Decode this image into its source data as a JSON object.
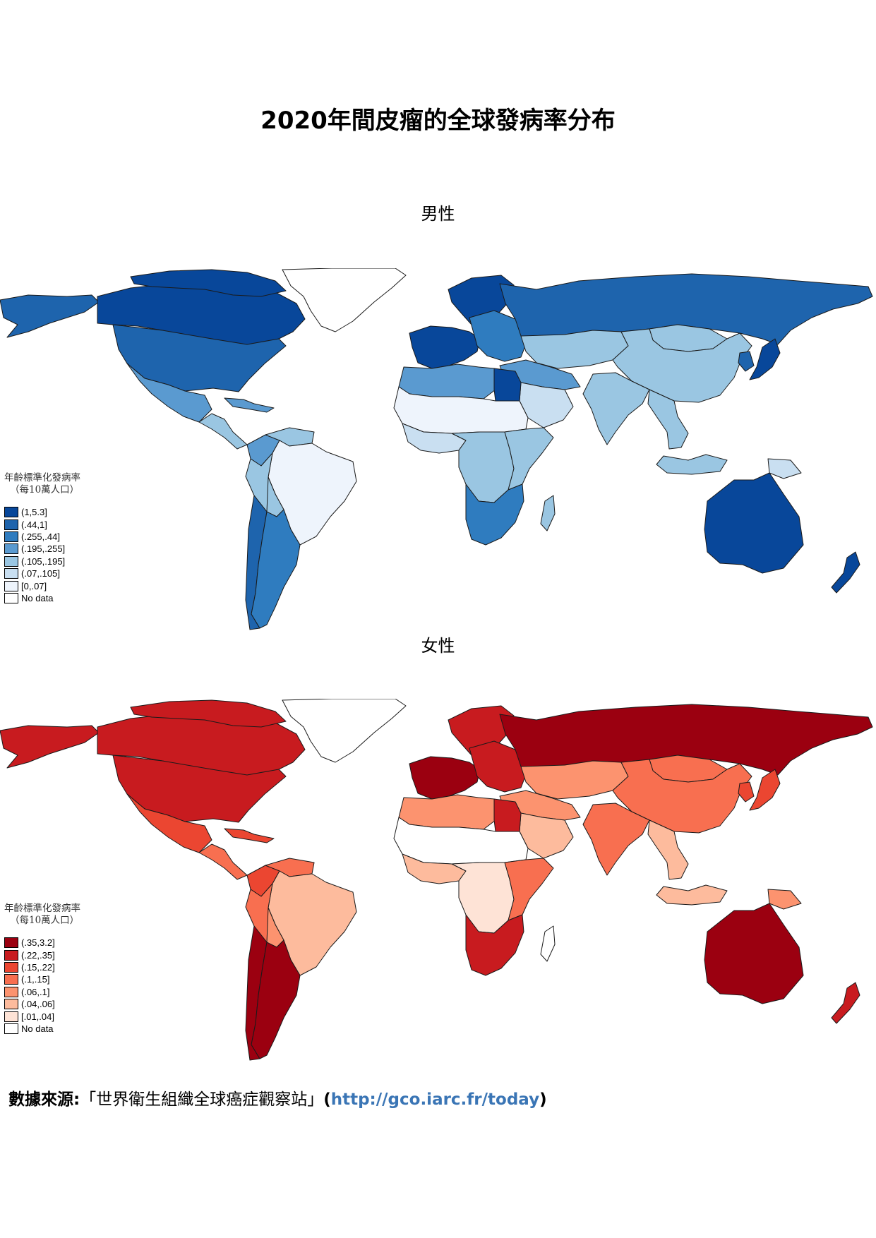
{
  "title": "2020年間皮瘤的全球發病率分布",
  "panels": {
    "male": {
      "title": "男性",
      "legend_title": "年齡標準化發病率",
      "legend_subtitle": "（每10萬人口）",
      "legend": [
        {
          "label": "(1,5.3]",
          "color": "#08479a"
        },
        {
          "label": "(.44,1]",
          "color": "#1e64ad"
        },
        {
          "label": "(.255,.44]",
          "color": "#2f7cbf"
        },
        {
          "label": "(.195,.255]",
          "color": "#5a9ad0"
        },
        {
          "label": "(.105,.195]",
          "color": "#9ac6e2"
        },
        {
          "label": "(.07,.105]",
          "color": "#c9dff1"
        },
        {
          "label": "[0,.07]",
          "color": "#eef4fc"
        },
        {
          "label": "No data",
          "color": "#ffffff"
        }
      ]
    },
    "female": {
      "title": "女性",
      "legend_title": "年齡標準化發病率",
      "legend_subtitle": "（每10萬人口）",
      "legend": [
        {
          "label": "(.35,3.2]",
          "color": "#9b0010"
        },
        {
          "label": "(.22,.35]",
          "color": "#c81b1f"
        },
        {
          "label": "(.15,.22]",
          "color": "#eb4631"
        },
        {
          "label": "(.1,.15]",
          "color": "#f86f50"
        },
        {
          "label": "(.06,.1]",
          "color": "#fc936f"
        },
        {
          "label": "(.04,.06]",
          "color": "#fdbb9d"
        },
        {
          "label": "[.01,.04]",
          "color": "#fee3d6"
        },
        {
          "label": "No data",
          "color": "#ffffff"
        }
      ]
    }
  },
  "source": {
    "label": "數據來源:",
    "name": "「世界衛生組織全球癌症觀察站」",
    "paren_open": "(",
    "link": "http://gco.iarc.fr/today",
    "paren_close": ")"
  },
  "map_regions": {
    "male": {
      "canada": 0,
      "usa": 1,
      "alaska": 1,
      "greenland": 7,
      "arctic_islands": 0,
      "mexico": 3,
      "central_america": 4,
      "caribbean": 3,
      "colombia": 3,
      "venezuela": 4,
      "brazil": 6,
      "peru": 4,
      "bolivia": 4,
      "argentina": 2,
      "chile": 1,
      "nordic": 0,
      "western_europe": 0,
      "eastern_europe": 2,
      "russia": 1,
      "north_africa": 3,
      "egypt": 0,
      "sahel": 6,
      "west_africa": 5,
      "central_africa": 4,
      "east_africa": 4,
      "southern_africa": 2,
      "madagascar": 4,
      "middle_east": 3,
      "arabia": 5,
      "central_asia": 4,
      "mongolia": 4,
      "china": 4,
      "india": 4,
      "southeast_asia": 4,
      "indonesia": 4,
      "japan": 0,
      "korea": 1,
      "australia": 0,
      "new_zealand": 0,
      "papua": 5
    },
    "female": {
      "canada": 1,
      "usa": 1,
      "alaska": 1,
      "greenland": 7,
      "arctic_islands": 1,
      "mexico": 2,
      "central_america": 3,
      "caribbean": 2,
      "colombia": 2,
      "venezuela": 3,
      "brazil": 5,
      "peru": 3,
      "bolivia": 4,
      "argentina": 0,
      "chile": 0,
      "nordic": 1,
      "western_europe": 0,
      "eastern_europe": 1,
      "russia": 0,
      "north_africa": 4,
      "egypt": 1,
      "sahel": 7,
      "west_africa": 5,
      "central_africa": 6,
      "east_africa": 3,
      "southern_africa": 1,
      "madagascar": 7,
      "middle_east": 4,
      "arabia": 5,
      "central_asia": 4,
      "mongolia": 3,
      "china": 3,
      "india": 3,
      "southeast_asia": 5,
      "indonesia": 5,
      "japan": 2,
      "korea": 2,
      "australia": 0,
      "new_zealand": 1,
      "papua": 4
    }
  }
}
